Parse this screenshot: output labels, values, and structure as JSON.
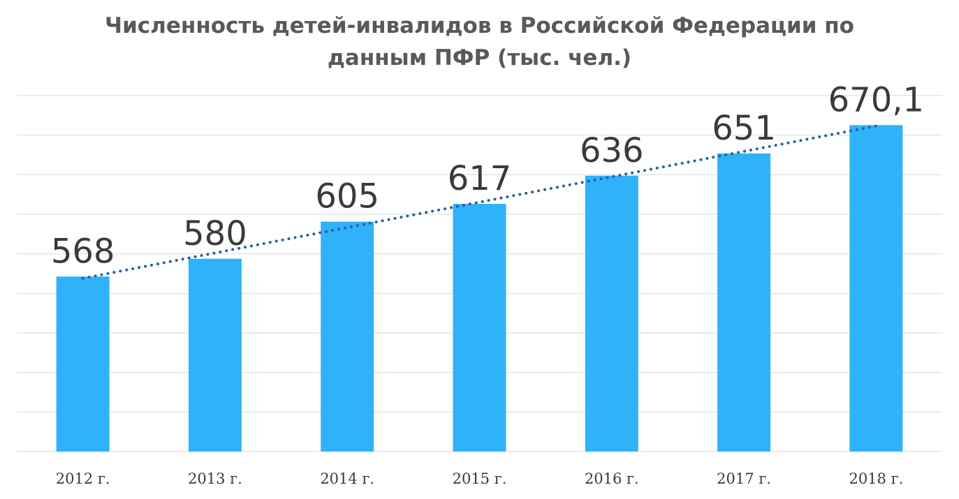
{
  "chart_data": {
    "type": "bar",
    "title_lines": [
      "Численность детей-инвалидов в Российской Федерации по",
      "данным ПФР (тыс. чел.)"
    ],
    "categories": [
      "2012 г.",
      "2013 г.",
      "2014 г.",
      "2015 г.",
      "2016 г.",
      "2017 г.",
      "2018 г."
    ],
    "values": [
      568,
      580,
      605,
      617,
      636,
      651,
      670.1
    ],
    "value_labels": [
      "568",
      "580",
      "605",
      "617",
      "636",
      "651",
      "670,1"
    ],
    "bar_color": "#2fb2f9",
    "trendline": {
      "type": "linear",
      "style": "dotted",
      "color": "#2d5fa0"
    },
    "ylim": [
      450,
      690
    ],
    "grid": true,
    "legend": "none"
  }
}
